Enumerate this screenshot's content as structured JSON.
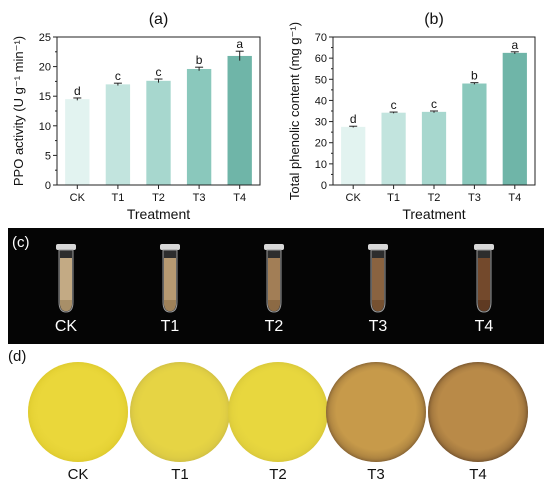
{
  "chart_data": [
    {
      "type": "bar",
      "panel_label": "(a)",
      "categories": [
        "CK",
        "T1",
        "T2",
        "T3",
        "T4"
      ],
      "values": [
        14.5,
        17.0,
        17.6,
        19.6,
        21.8
      ],
      "errors": [
        0.2,
        0.2,
        0.3,
        0.3,
        0.8
      ],
      "significance": [
        "d",
        "c",
        "c",
        "b",
        "a"
      ],
      "xlabel": "Treatment",
      "ylabel": "PPO activity (U g⁻¹ min⁻¹)",
      "ylim": [
        0,
        25
      ],
      "yticks": [
        0,
        5,
        10,
        15,
        20,
        25
      ],
      "colors": [
        "#e2f3f0",
        "#c2e4de",
        "#a7d7ce",
        "#8ac8bc",
        "#6fb5a8"
      ]
    },
    {
      "type": "bar",
      "panel_label": "(b)",
      "categories": [
        "CK",
        "T1",
        "T2",
        "T3",
        "T4"
      ],
      "values": [
        27.5,
        34.2,
        34.6,
        48.0,
        62.5
      ],
      "errors": [
        0.3,
        0.3,
        0.4,
        0.4,
        0.5
      ],
      "significance": [
        "d",
        "c",
        "c",
        "b",
        "a"
      ],
      "xlabel": "Treatment",
      "ylabel": "Total phenolic content (mg g⁻¹)",
      "ylim": [
        0,
        70
      ],
      "yticks": [
        0,
        10,
        20,
        30,
        40,
        50,
        60,
        70
      ],
      "colors": [
        "#e2f3f0",
        "#c2e4de",
        "#a7d7ce",
        "#8ac8bc",
        "#6fb5a8"
      ]
    }
  ],
  "panel_c": {
    "label": "(c)",
    "tubes": [
      {
        "label": "CK",
        "liquid": "#c3aa84",
        "sediment": "#a88f68"
      },
      {
        "label": "T1",
        "liquid": "#b79a72",
        "sediment": "#9e8159"
      },
      {
        "label": "T2",
        "liquid": "#a27e56",
        "sediment": "#8c6a44"
      },
      {
        "label": "T3",
        "liquid": "#8a6340",
        "sediment": "#765131"
      },
      {
        "label": "T4",
        "liquid": "#73492c",
        "sediment": "#5f3a22"
      }
    ]
  },
  "panel_d": {
    "label": "(d)",
    "slices": [
      {
        "label": "CK",
        "center": "#ead73a",
        "edge": "#d9c52a"
      },
      {
        "label": "T1",
        "center": "#e6d444",
        "edge": "#c8b846"
      },
      {
        "label": "T2",
        "center": "#e8d73e",
        "edge": "#d2c13a"
      },
      {
        "label": "T3",
        "center": "#c79a4a",
        "edge": "#6d4e2c"
      },
      {
        "label": "T4",
        "center": "#b98a48",
        "edge": "#5c3f24"
      }
    ]
  }
}
